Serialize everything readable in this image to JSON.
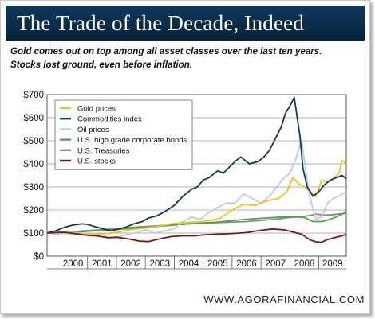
{
  "header": {
    "title": "The Trade of the Decade, Indeed",
    "subtitle_line1": "Gold comes out on top among all asset classes over the last ten years.",
    "subtitle_line2": "Stocks lost ground, even before inflation."
  },
  "footer": {
    "source": "WWW.AGORAFINANCIAL.COM"
  },
  "colors": {
    "banner": "#0d3a5e",
    "gold": "#f2c21b",
    "commodities": "#0e3a58",
    "oil": "#b8cfe6",
    "corporate": "#49a844",
    "treasuries": "#8a8a8a",
    "stocks": "#7b1616",
    "plot_background": "#ffffff",
    "grid": "#9a9a9a"
  },
  "chart_data": {
    "type": "line",
    "title": "",
    "xlabel": "",
    "ylabel": "",
    "x_tick_labels": [
      "2000",
      "2001",
      "2002",
      "2003",
      "2004",
      "2005",
      "2006",
      "2007",
      "2008",
      "2009"
    ],
    "y_tick_labels": [
      "$0",
      "$100",
      "$200",
      "$300",
      "$400",
      "$500",
      "$600",
      "$700"
    ],
    "xlim": [
      1999.6,
      2009.95
    ],
    "ylim": [
      0,
      700
    ],
    "grid": "horizontal",
    "legend_position": "top-left",
    "series": [
      {
        "name": "Gold prices",
        "key": "gold",
        "x": [
          1999.6,
          2000.0,
          2000.5,
          2001.0,
          2001.5,
          2002.0,
          2002.5,
          2003.0,
          2003.5,
          2004.0,
          2004.5,
          2005.0,
          2005.3,
          2005.6,
          2006.0,
          2006.4,
          2006.8,
          2007.2,
          2007.6,
          2007.9,
          2008.1,
          2008.3,
          2008.5,
          2008.7,
          2008.9,
          2009.1,
          2009.3,
          2009.5,
          2009.7,
          2009.8,
          2009.95
        ],
        "values": [
          100,
          102,
          96,
          94,
          96,
          103,
          115,
          122,
          130,
          142,
          146,
          150,
          156,
          165,
          200,
          225,
          220,
          240,
          250,
          280,
          340,
          315,
          300,
          280,
          260,
          330,
          320,
          335,
          360,
          415,
          400
        ]
      },
      {
        "name": "Commodities index",
        "key": "commodities",
        "x": [
          1999.6,
          1999.9,
          2000.2,
          2000.5,
          2000.8,
          2001.0,
          2001.2,
          2001.5,
          2001.8,
          2002.0,
          2002.3,
          2002.6,
          2002.9,
          2003.1,
          2003.4,
          2003.7,
          2004.0,
          2004.3,
          2004.6,
          2004.8,
          2005.0,
          2005.2,
          2005.5,
          2005.7,
          2005.9,
          2006.1,
          2006.3,
          2006.6,
          2006.9,
          2007.1,
          2007.3,
          2007.5,
          2007.7,
          2007.85,
          2008.0,
          2008.15,
          2008.35,
          2008.45,
          2008.6,
          2008.8,
          2009.0,
          2009.2,
          2009.4,
          2009.6,
          2009.8,
          2009.95
        ],
        "values": [
          100,
          110,
          125,
          135,
          140,
          138,
          130,
          120,
          110,
          115,
          125,
          140,
          150,
          165,
          175,
          195,
          220,
          260,
          290,
          300,
          330,
          340,
          370,
          360,
          385,
          410,
          430,
          400,
          410,
          430,
          460,
          510,
          560,
          620,
          650,
          688,
          520,
          380,
          300,
          260,
          280,
          310,
          330,
          340,
          350,
          335
        ]
      },
      {
        "name": "Oil prices",
        "key": "oil",
        "x": [
          1999.6,
          2000.0,
          2000.3,
          2000.7,
          2001.0,
          2001.4,
          2001.8,
          2002.0,
          2002.4,
          2002.8,
          2003.0,
          2003.3,
          2003.7,
          2004.0,
          2004.3,
          2004.6,
          2004.9,
          2005.2,
          2005.5,
          2005.8,
          2006.1,
          2006.4,
          2006.7,
          2007.0,
          2007.3,
          2007.6,
          2007.8,
          2008.0,
          2008.2,
          2008.4,
          2008.55,
          2008.7,
          2008.9,
          2009.1,
          2009.3,
          2009.5,
          2009.7,
          2009.95
        ],
        "values": [
          90,
          95,
          105,
          100,
          95,
          100,
          75,
          80,
          95,
          105,
          115,
          100,
          110,
          120,
          150,
          170,
          160,
          190,
          210,
          230,
          230,
          270,
          250,
          230,
          260,
          310,
          340,
          360,
          420,
          505,
          370,
          250,
          160,
          170,
          230,
          250,
          260,
          280
        ]
      },
      {
        "name": "U.S. high grade corporate bonds",
        "key": "corporate",
        "x": [
          1999.6,
          2000.5,
          2001.5,
          2002.5,
          2003.5,
          2004.5,
          2005.5,
          2006.5,
          2007.5,
          2008.0,
          2008.5,
          2008.8,
          2009.1,
          2009.4,
          2009.7,
          2009.95
        ],
        "values": [
          100,
          103,
          112,
          120,
          130,
          140,
          148,
          160,
          168,
          172,
          168,
          150,
          150,
          160,
          175,
          192
        ]
      },
      {
        "name": "U.S. Treasuries",
        "key": "treasuries",
        "x": [
          1999.6,
          2000.5,
          2001.5,
          2002.5,
          2003.5,
          2004.5,
          2005.5,
          2006.5,
          2007.5,
          2008.0,
          2008.5,
          2008.9,
          2009.2,
          2009.5,
          2009.95
        ],
        "values": [
          100,
          106,
          115,
          125,
          132,
          140,
          145,
          150,
          160,
          168,
          172,
          182,
          178,
          180,
          186
        ]
      },
      {
        "name": "U.S. stocks",
        "key": "stocks",
        "x": [
          1999.6,
          2000.0,
          2000.3,
          2000.7,
          2001.0,
          2001.3,
          2001.7,
          2002.0,
          2002.4,
          2002.8,
          2003.1,
          2003.5,
          2003.9,
          2004.3,
          2004.7,
          2005.0,
          2005.5,
          2006.0,
          2006.5,
          2007.0,
          2007.4,
          2007.8,
          2008.1,
          2008.4,
          2008.7,
          2008.9,
          2009.1,
          2009.3,
          2009.6,
          2009.8,
          2009.95
        ],
        "values": [
          100,
          103,
          102,
          95,
          90,
          88,
          80,
          82,
          75,
          65,
          63,
          75,
          85,
          88,
          88,
          92,
          95,
          98,
          102,
          112,
          118,
          114,
          105,
          95,
          70,
          62,
          60,
          72,
          82,
          88,
          95
        ]
      }
    ]
  }
}
